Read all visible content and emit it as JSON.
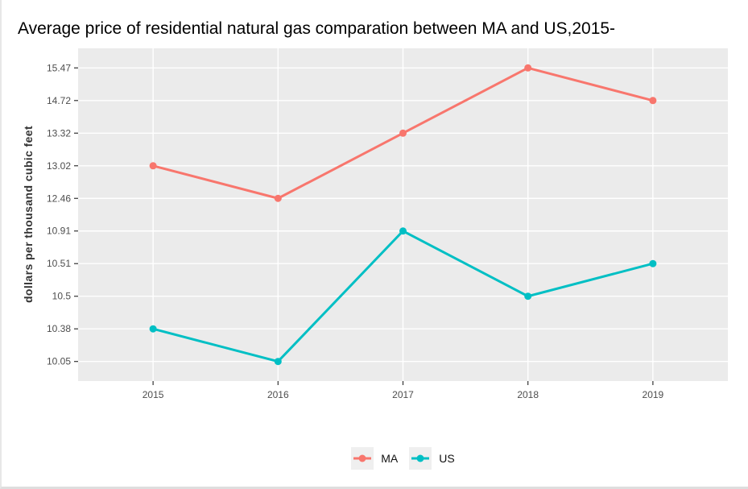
{
  "title": "Average price of residential natural gas comparation between MA and US,2015-",
  "chart_data": {
    "type": "line",
    "title": "Average price of residential natural gas comparation between MA and US,2015-",
    "xlabel": "",
    "ylabel": "dollars per thousand cubic feet",
    "categories": [
      "2015",
      "2016",
      "2017",
      "2018",
      "2019"
    ],
    "y_axis_type": "discrete",
    "y_levels_bottom_to_top": [
      "10.05",
      "10.38",
      "10.5",
      "10.51",
      "10.91",
      "12.46",
      "13.02",
      "13.32",
      "14.72",
      "15.47"
    ],
    "series": [
      {
        "name": "MA",
        "color": "#F8766D",
        "values": [
          13.02,
          12.46,
          13.32,
          15.47,
          14.72
        ]
      },
      {
        "name": "US",
        "color": "#00BFC4",
        "values": [
          10.38,
          10.05,
          10.91,
          10.5,
          10.51
        ]
      }
    ],
    "legend_position": "bottom",
    "grid": true,
    "panel_bg": "#EBEBEB",
    "grid_color": "#FFFFFF",
    "tick_color": "#333333",
    "tick_label_color": "#4d4d4d"
  },
  "legend": {
    "items": [
      {
        "label": "MA",
        "color": "#F8766D"
      },
      {
        "label": "US",
        "color": "#00BFC4"
      }
    ]
  }
}
